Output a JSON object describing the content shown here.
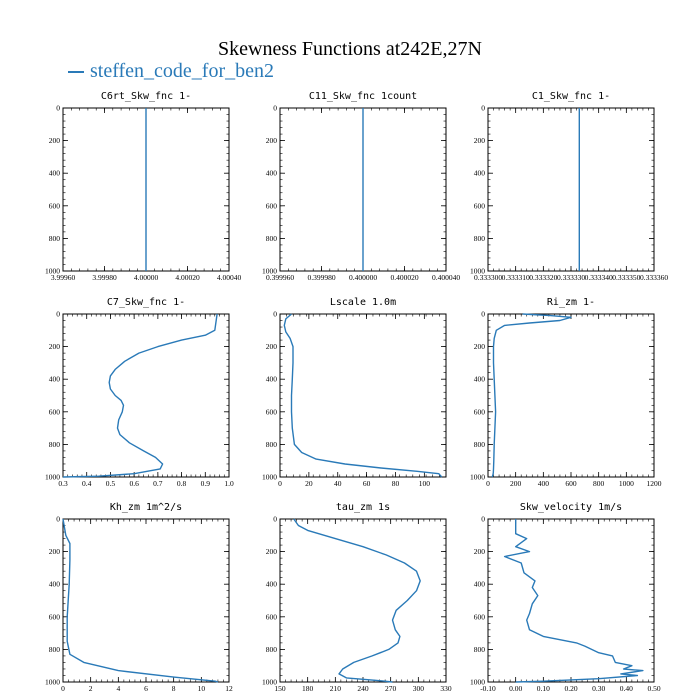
{
  "figure": {
    "title": "Skewness Functions at242E,27N",
    "legend": {
      "label": "steffen_code_for_ben2",
      "color": "#2a7ab8"
    }
  },
  "chart_data": [
    {
      "type": "line",
      "title": "C6rt_Skw_fnc",
      "unit": "1-",
      "xlim": [
        3.9996,
        4.0004
      ],
      "ylim": [
        1000,
        0
      ],
      "xticks": [
        3.9996,
        3.9998,
        4.0,
        4.0002,
        4.0004
      ],
      "xtick_labels": [
        "3.99960",
        "3.99980",
        "4.00000",
        "4.00020",
        "4.00040"
      ],
      "yticks": [
        0,
        200,
        400,
        600,
        800,
        1000
      ],
      "series": [
        {
          "x": [
            4.0,
            4.0
          ],
          "y": [
            0,
            1000
          ]
        }
      ]
    },
    {
      "type": "line",
      "title": "C11_Skw_fnc",
      "unit": "1count",
      "xlim": [
        0.39996,
        0.40004
      ],
      "ylim": [
        1000,
        0
      ],
      "xticks": [
        0.39996,
        0.39998,
        0.4,
        0.40002,
        0.40004
      ],
      "xtick_labels": [
        "0.399960",
        "0.399980",
        "0.400000",
        "0.400020",
        "0.400040"
      ],
      "yticks": [
        0,
        200,
        400,
        600,
        800,
        1000
      ],
      "series": [
        {
          "x": [
            0.4,
            0.4
          ],
          "y": [
            0,
            1000
          ]
        }
      ]
    },
    {
      "type": "line",
      "title": "C1_Skw_fnc",
      "unit": "1-",
      "xlim": [
        0.3333,
        0.33336
      ],
      "ylim": [
        1000,
        0
      ],
      "xticks": [
        0.3333,
        0.33331,
        0.33332,
        0.33333,
        0.33334,
        0.33335,
        0.33336
      ],
      "xtick_labels": [
        "0.333300",
        "0.333310",
        "0.333320",
        "0.333330",
        "0.333340",
        "0.333350",
        "0.333360"
      ],
      "yticks": [
        0,
        200,
        400,
        600,
        800,
        1000
      ],
      "series": [
        {
          "x": [
            0.333333,
            0.333333
          ],
          "y": [
            0,
            1000
          ]
        }
      ]
    },
    {
      "type": "line",
      "title": "C7_Skw_fnc",
      "unit": "1-",
      "xlim": [
        0.3,
        1.0
      ],
      "ylim": [
        1000,
        0
      ],
      "xticks": [
        0.3,
        0.4,
        0.5,
        0.6,
        0.7,
        0.8,
        0.9,
        1.0
      ],
      "xtick_labels": [
        "0.3",
        "0.4",
        "0.5",
        "0.6",
        "0.7",
        "0.8",
        "0.9",
        "1.0"
      ],
      "yticks": [
        0,
        200,
        400,
        600,
        800,
        1000
      ],
      "series": [
        {
          "x": [
            0.95,
            0.94,
            0.9,
            0.8,
            0.7,
            0.62,
            0.56,
            0.52,
            0.5,
            0.495,
            0.5,
            0.52,
            0.545,
            0.555,
            0.55,
            0.535,
            0.53,
            0.54,
            0.58,
            0.64,
            0.69,
            0.72,
            0.71,
            0.6,
            0.45,
            0.3
          ],
          "y": [
            0,
            100,
            130,
            160,
            200,
            240,
            290,
            340,
            380,
            420,
            460,
            500,
            530,
            560,
            600,
            650,
            700,
            740,
            790,
            840,
            880,
            920,
            950,
            980,
            995,
            1000
          ]
        }
      ]
    },
    {
      "type": "line",
      "title": "Lscale",
      "unit": "1.0m",
      "xlim": [
        0,
        115
      ],
      "ylim": [
        1000,
        0
      ],
      "xticks": [
        0,
        20,
        40,
        60,
        80,
        100
      ],
      "xtick_labels": [
        "0",
        "20",
        "40",
        "60",
        "80",
        "100"
      ],
      "yticks": [
        0,
        200,
        400,
        600,
        800,
        1000
      ],
      "series": [
        {
          "x": [
            8,
            4,
            3,
            4,
            7,
            9,
            9,
            8.5,
            8,
            8,
            8.5,
            10,
            15,
            25,
            45,
            70,
            95,
            110,
            112
          ],
          "y": [
            0,
            30,
            70,
            110,
            150,
            200,
            300,
            400,
            500,
            600,
            700,
            800,
            850,
            890,
            920,
            945,
            965,
            980,
            1000
          ]
        }
      ]
    },
    {
      "type": "line",
      "title": "Ri_zm",
      "unit": "1-",
      "xlim": [
        0,
        1200
      ],
      "ylim": [
        1000,
        0
      ],
      "xticks": [
        0,
        200,
        400,
        600,
        800,
        1000,
        1200
      ],
      "xtick_labels": [
        "0",
        "200",
        "400",
        "600",
        "800",
        "1000",
        "1200"
      ],
      "yticks": [
        0,
        200,
        400,
        600,
        800,
        1000
      ],
      "series": [
        {
          "x": [
            250,
            450,
            600,
            520,
            300,
            120,
            60,
            45,
            40,
            40,
            45,
            50,
            55,
            50,
            45,
            42,
            40,
            38,
            35,
            30
          ],
          "y": [
            0,
            10,
            20,
            40,
            55,
            70,
            100,
            150,
            200,
            300,
            400,
            500,
            600,
            700,
            800,
            900,
            950,
            975,
            990,
            1000
          ]
        }
      ]
    },
    {
      "type": "line",
      "title": "Kh_zm",
      "unit": "1m^2/s",
      "xlim": [
        0,
        12
      ],
      "ylim": [
        1000,
        0
      ],
      "xticks": [
        0,
        2,
        4,
        6,
        8,
        10,
        12
      ],
      "xtick_labels": [
        "0",
        "2",
        "4",
        "6",
        "8",
        "10",
        "12"
      ],
      "yticks": [
        0,
        200,
        400,
        600,
        800,
        1000
      ],
      "series": [
        {
          "x": [
            0,
            0.2,
            0.5,
            0.5,
            0.45,
            0.3,
            0.3,
            0.5,
            1.5,
            4,
            8,
            11,
            11.2
          ],
          "y": [
            0,
            100,
            150,
            250,
            400,
            600,
            750,
            830,
            880,
            930,
            970,
            995,
            1000
          ]
        }
      ]
    },
    {
      "type": "line",
      "title": "tau_zm",
      "unit": "1s",
      "xlim": [
        150,
        330
      ],
      "ylim": [
        1000,
        0
      ],
      "xticks": [
        150,
        180,
        210,
        240,
        270,
        300,
        330
      ],
      "xtick_labels": [
        "150",
        "180",
        "210",
        "240",
        "270",
        "300",
        "330"
      ],
      "yticks": [
        0,
        200,
        400,
        600,
        800,
        1000
      ],
      "series": [
        {
          "x": [
            165,
            170,
            180,
            210,
            240,
            265,
            285,
            298,
            302,
            298,
            288,
            276,
            272,
            275,
            280,
            278,
            268,
            250,
            230,
            218,
            214,
            222,
            255,
            272
          ],
          "y": [
            0,
            40,
            70,
            120,
            170,
            220,
            270,
            320,
            380,
            440,
            500,
            560,
            620,
            680,
            720,
            760,
            800,
            840,
            880,
            920,
            950,
            975,
            990,
            1000
          ]
        }
      ]
    },
    {
      "type": "line",
      "title": "Skw_velocity",
      "unit": "1m/s",
      "xlim": [
        -0.1,
        0.5
      ],
      "ylim": [
        1000,
        0
      ],
      "xticks": [
        -0.1,
        0.0,
        0.1,
        0.2,
        0.3,
        0.4,
        0.5
      ],
      "xtick_labels": [
        "-0.10",
        "0.00",
        "0.10",
        "0.20",
        "0.30",
        "0.40",
        "0.50"
      ],
      "yticks": [
        0,
        200,
        400,
        600,
        800,
        1000
      ],
      "series": [
        {
          "x": [
            0.0,
            0.0,
            0.04,
            0.0,
            0.05,
            -0.04,
            0.02,
            0.03,
            0.07,
            0.06,
            0.08,
            0.06,
            0.05,
            0.04,
            0.05,
            0.1,
            0.22,
            0.25,
            0.3,
            0.35,
            0.36,
            0.42,
            0.39,
            0.46,
            0.38,
            0.44,
            0.3,
            0.1,
            0.0
          ],
          "y": [
            0,
            90,
            120,
            170,
            200,
            230,
            270,
            330,
            380,
            420,
            470,
            520,
            580,
            620,
            680,
            720,
            760,
            780,
            820,
            840,
            880,
            900,
            920,
            930,
            950,
            960,
            980,
            995,
            1000
          ]
        }
      ]
    }
  ]
}
